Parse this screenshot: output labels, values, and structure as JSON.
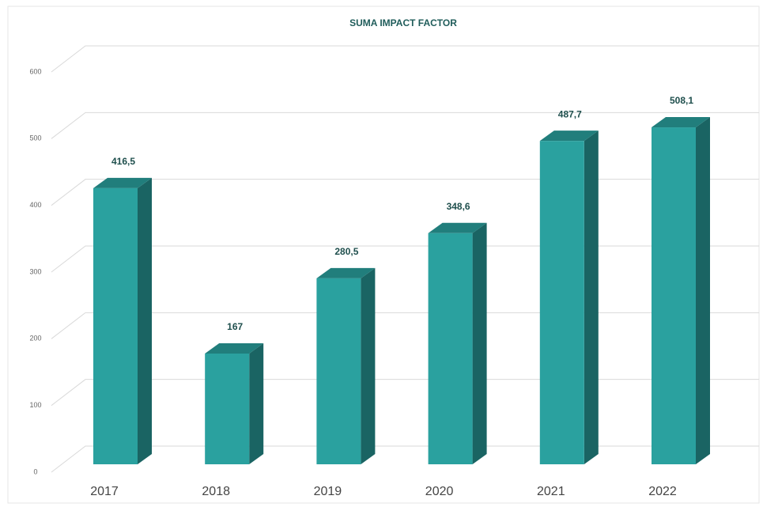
{
  "chart_data": {
    "type": "bar3d",
    "title": "SUMA IMPACT FACTOR",
    "categories": [
      "2017",
      "2018",
      "2019",
      "2020",
      "2021",
      "2022"
    ],
    "values": [
      416.5,
      167,
      280.5,
      348.6,
      487.7,
      508.1
    ],
    "value_labels": [
      "416,5",
      "167",
      "280,5",
      "348,6",
      "487,7",
      "508,1"
    ],
    "color": "#2aa19f",
    "ylim": [
      0,
      600
    ],
    "yticks": [
      0,
      100,
      200,
      300,
      400,
      500,
      600
    ],
    "grid": true
  }
}
